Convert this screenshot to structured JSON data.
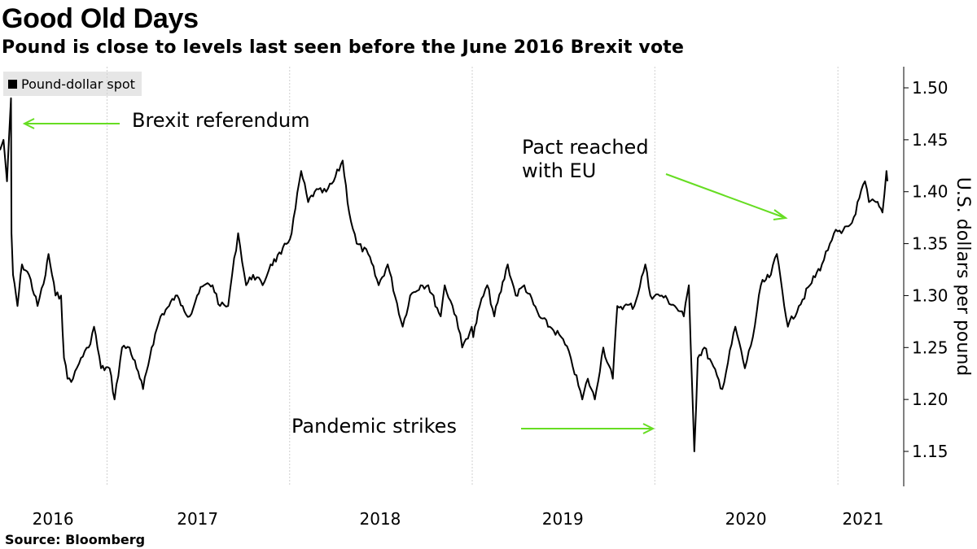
{
  "header": {
    "title": "Good Old Days",
    "subtitle": "Pound is close to levels last seen before the June 2016 Brexit vote"
  },
  "legend": {
    "label": "Pound-dollar spot",
    "color": "#000000"
  },
  "footer": {
    "source": "Source: Bloomberg"
  },
  "annotations": {
    "brexit": "Brexit referendum",
    "pact_line1": "Pact reached",
    "pact_line2": "with EU",
    "pandemic": "Pandemic strikes",
    "arrow_color": "#66dd22"
  },
  "chart_data": {
    "type": "line",
    "title": "Good Old Days",
    "subtitle": "Pound is close to levels last seen before the June 2016 Brexit vote",
    "xlabel": "",
    "ylabel": "U.S. dollars per pound",
    "ylim": [
      1.12,
      1.52
    ],
    "yticks": [
      "1.15",
      "1.20",
      "1.25",
      "1.30",
      "1.35",
      "1.40",
      "1.45",
      "1.50"
    ],
    "xticks": [
      "2016",
      "2017",
      "2018",
      "2019",
      "2020",
      "2021"
    ],
    "xlim": [
      "2016-06-01",
      "2021-04-10"
    ],
    "grid": "vertical dotted at year boundaries",
    "y_axis_side": "right",
    "legend_position": "top-left",
    "series": [
      {
        "name": "Pound-dollar spot",
        "color": "#000000",
        "points": [
          [
            "2016-06-01",
            1.44
          ],
          [
            "2016-06-08",
            1.45
          ],
          [
            "2016-06-15",
            1.41
          ],
          [
            "2016-06-23",
            1.49
          ],
          [
            "2016-06-24",
            1.36
          ],
          [
            "2016-06-27",
            1.32
          ],
          [
            "2016-07-06",
            1.29
          ],
          [
            "2016-07-15",
            1.33
          ],
          [
            "2016-07-29",
            1.32
          ],
          [
            "2016-08-15",
            1.29
          ],
          [
            "2016-08-31",
            1.32
          ],
          [
            "2016-09-06",
            1.34
          ],
          [
            "2016-09-20",
            1.3
          ],
          [
            "2016-10-01",
            1.3
          ],
          [
            "2016-10-07",
            1.24
          ],
          [
            "2016-10-14",
            1.22
          ],
          [
            "2016-10-25",
            1.22
          ],
          [
            "2016-11-10",
            1.24
          ],
          [
            "2016-11-25",
            1.25
          ],
          [
            "2016-12-06",
            1.27
          ],
          [
            "2016-12-20",
            1.23
          ],
          [
            "2017-01-06",
            1.23
          ],
          [
            "2017-01-16",
            1.2
          ],
          [
            "2017-01-31",
            1.25
          ],
          [
            "2017-02-15",
            1.25
          ],
          [
            "2017-03-01",
            1.23
          ],
          [
            "2017-03-14",
            1.21
          ],
          [
            "2017-03-31",
            1.25
          ],
          [
            "2017-04-18",
            1.28
          ],
          [
            "2017-05-05",
            1.29
          ],
          [
            "2017-05-18",
            1.3
          ],
          [
            "2017-06-01",
            1.29
          ],
          [
            "2017-06-15",
            1.28
          ],
          [
            "2017-06-30",
            1.3
          ],
          [
            "2017-07-14",
            1.31
          ],
          [
            "2017-07-31",
            1.31
          ],
          [
            "2017-08-15",
            1.29
          ],
          [
            "2017-08-31",
            1.29
          ],
          [
            "2017-09-08",
            1.32
          ],
          [
            "2017-09-20",
            1.36
          ],
          [
            "2017-10-06",
            1.31
          ],
          [
            "2017-10-20",
            1.32
          ],
          [
            "2017-11-08",
            1.31
          ],
          [
            "2017-11-24",
            1.33
          ],
          [
            "2017-12-15",
            1.34
          ],
          [
            "2018-01-05",
            1.36
          ],
          [
            "2018-01-24",
            1.42
          ],
          [
            "2018-02-07",
            1.39
          ],
          [
            "2018-02-20",
            1.4
          ],
          [
            "2018-03-15",
            1.4
          ],
          [
            "2018-03-30",
            1.41
          ],
          [
            "2018-04-17",
            1.43
          ],
          [
            "2018-04-30",
            1.38
          ],
          [
            "2018-05-15",
            1.35
          ],
          [
            "2018-06-07",
            1.34
          ],
          [
            "2018-06-28",
            1.31
          ],
          [
            "2018-07-16",
            1.33
          ],
          [
            "2018-08-15",
            1.27
          ],
          [
            "2018-08-30",
            1.3
          ],
          [
            "2018-09-20",
            1.31
          ],
          [
            "2018-10-05",
            1.31
          ],
          [
            "2018-10-30",
            1.28
          ],
          [
            "2018-11-07",
            1.31
          ],
          [
            "2018-11-30",
            1.28
          ],
          [
            "2018-12-12",
            1.25
          ],
          [
            "2018-12-31",
            1.27
          ],
          [
            "2019-01-03",
            1.26
          ],
          [
            "2019-01-16",
            1.29
          ],
          [
            "2019-01-31",
            1.31
          ],
          [
            "2019-02-14",
            1.28
          ],
          [
            "2019-03-13",
            1.33
          ],
          [
            "2019-03-29",
            1.3
          ],
          [
            "2019-04-15",
            1.31
          ],
          [
            "2019-05-15",
            1.28
          ],
          [
            "2019-06-05",
            1.27
          ],
          [
            "2019-06-28",
            1.26
          ],
          [
            "2019-07-17",
            1.24
          ],
          [
            "2019-08-09",
            1.2
          ],
          [
            "2019-08-20",
            1.22
          ],
          [
            "2019-09-03",
            1.2
          ],
          [
            "2019-09-20",
            1.25
          ],
          [
            "2019-10-09",
            1.22
          ],
          [
            "2019-10-18",
            1.29
          ],
          [
            "2019-11-01",
            1.29
          ],
          [
            "2019-11-21",
            1.29
          ],
          [
            "2019-12-13",
            1.33
          ],
          [
            "2019-12-23",
            1.3
          ],
          [
            "2020-01-15",
            1.3
          ],
          [
            "2020-02-10",
            1.29
          ],
          [
            "2020-02-28",
            1.28
          ],
          [
            "2020-03-09",
            1.31
          ],
          [
            "2020-03-20",
            1.15
          ],
          [
            "2020-03-27",
            1.24
          ],
          [
            "2020-04-09",
            1.25
          ],
          [
            "2020-05-15",
            1.21
          ],
          [
            "2020-06-10",
            1.27
          ],
          [
            "2020-06-29",
            1.23
          ],
          [
            "2020-07-15",
            1.26
          ],
          [
            "2020-07-31",
            1.31
          ],
          [
            "2020-08-20",
            1.32
          ],
          [
            "2020-09-01",
            1.34
          ],
          [
            "2020-09-23",
            1.27
          ],
          [
            "2020-10-15",
            1.29
          ],
          [
            "2020-11-06",
            1.31
          ],
          [
            "2020-11-30",
            1.33
          ],
          [
            "2020-12-16",
            1.35
          ],
          [
            "2020-12-24",
            1.36
          ],
          [
            "2021-01-08",
            1.36
          ],
          [
            "2021-01-29",
            1.37
          ],
          [
            "2021-02-24",
            1.41
          ],
          [
            "2021-03-04",
            1.39
          ],
          [
            "2021-03-18",
            1.39
          ],
          [
            "2021-03-31",
            1.38
          ],
          [
            "2021-04-08",
            1.42
          ],
          [
            "2021-04-10",
            1.41
          ]
        ]
      }
    ]
  }
}
